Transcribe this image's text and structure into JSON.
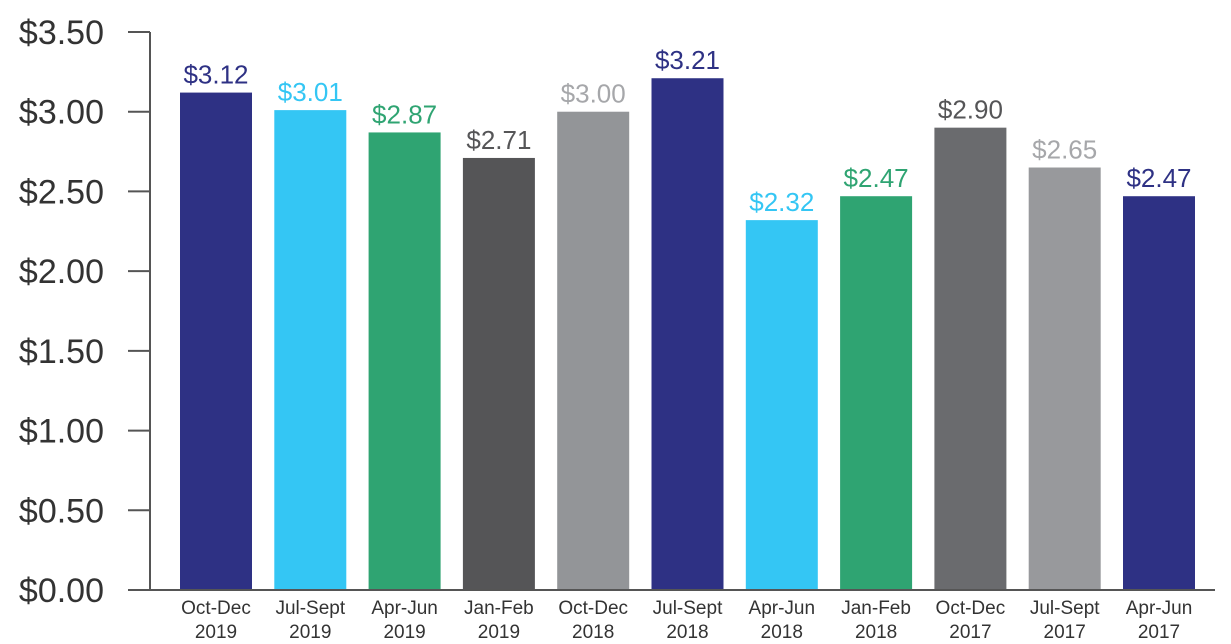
{
  "chart_data": {
    "type": "bar",
    "title": "",
    "xlabel": "",
    "ylabel": "",
    "ylim": [
      0,
      3.5
    ],
    "y_ticks": [
      "$0.00",
      "$0.50",
      "$1.00",
      "$1.50",
      "$2.00",
      "$2.50",
      "$3.00",
      "$3.50"
    ],
    "y_tick_values": [
      0,
      0.5,
      1.0,
      1.5,
      2.0,
      2.5,
      3.0,
      3.5
    ],
    "grid": false,
    "legend": "none",
    "categories": [
      [
        "Oct-Dec",
        "2019"
      ],
      [
        "Jul-Sept",
        "2019"
      ],
      [
        "Apr-Jun",
        "2019"
      ],
      [
        "Jan-Feb",
        "2019"
      ],
      [
        "Oct-Dec",
        "2018"
      ],
      [
        "Jul-Sept",
        "2018"
      ],
      [
        "Apr-Jun",
        "2018"
      ],
      [
        "Jan-Feb",
        "2018"
      ],
      [
        "Oct-Dec",
        "2017"
      ],
      [
        "Jul-Sept",
        "2017"
      ],
      [
        "Apr-Jun",
        "2017"
      ]
    ],
    "values": [
      3.12,
      3.01,
      2.87,
      2.71,
      3.0,
      3.21,
      2.32,
      2.47,
      2.9,
      2.65,
      2.47
    ],
    "data_labels": [
      "$3.12",
      "$3.01",
      "$2.87",
      "$2.71",
      "$3.00",
      "$3.21",
      "$2.32",
      "$2.47",
      "$2.90",
      "$2.65",
      "$2.47"
    ],
    "bar_colors": [
      "#2e3184",
      "#34c6f4",
      "#2fa472",
      "#555557",
      "#939598",
      "#2e3184",
      "#34c6f4",
      "#2fa472",
      "#6a6b6e",
      "#98999c",
      "#2e3184"
    ],
    "label_colors": [
      "#2e3184",
      "#34c6f4",
      "#2fa472",
      "#555557",
      "#a6a7aa",
      "#2e3184",
      "#34c6f4",
      "#2fa472",
      "#555557",
      "#a6a7aa",
      "#2e3184"
    ]
  }
}
